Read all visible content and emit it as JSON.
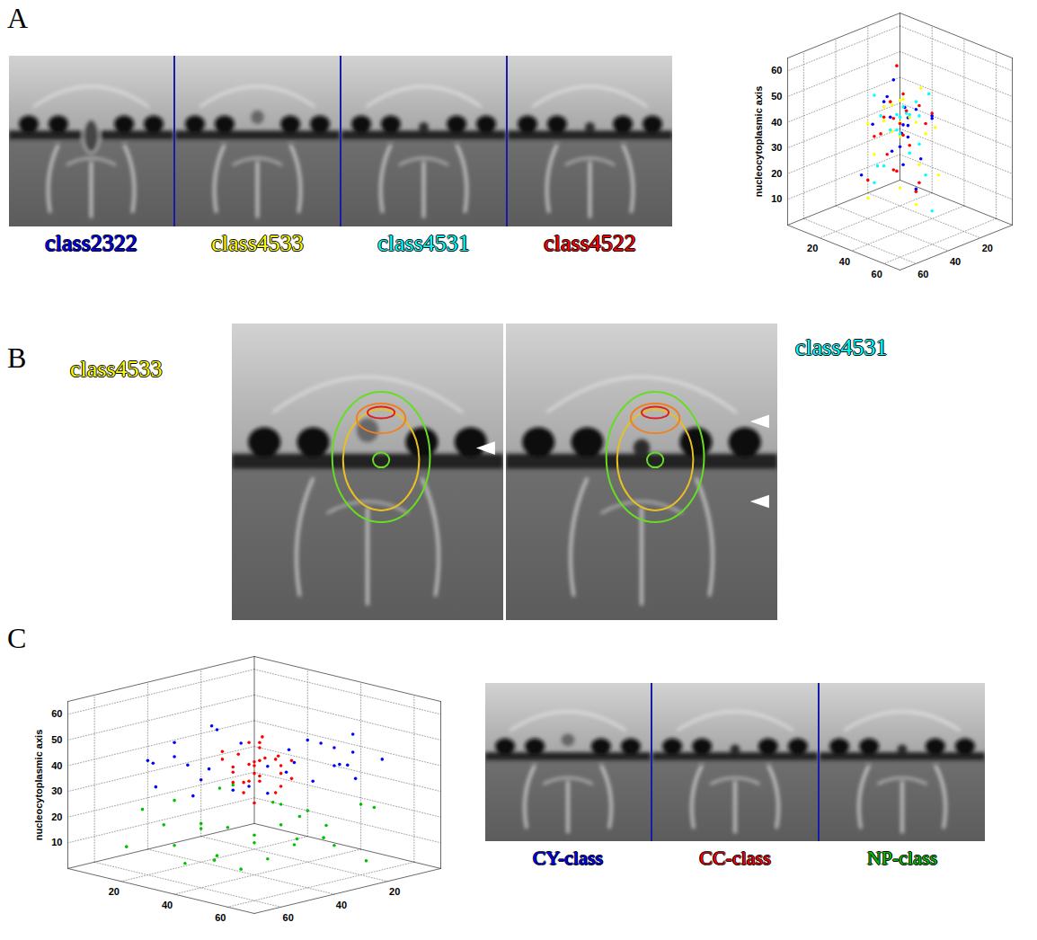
{
  "chart_data": [
    {
      "type": "scatter3d",
      "letter": "A",
      "zlabel": "nucleocytoplasmic axis",
      "xlim": [
        0,
        70
      ],
      "ylim": [
        0,
        70
      ],
      "zlim": [
        0,
        65
      ],
      "xticks": [
        20,
        40,
        60
      ],
      "yticks": [
        20,
        40,
        60
      ],
      "zticks": [
        10,
        20,
        30,
        40,
        50,
        60
      ],
      "grid": true,
      "series": [
        {
          "name": "class2322",
          "color": "#0000ff",
          "points": [
            [
              30,
              40,
              45
            ],
            [
              38,
              32,
              42
            ],
            [
              42,
              45,
              50
            ],
            [
              25,
              30,
              38
            ],
            [
              35,
              36,
              36
            ],
            [
              45,
              28,
              40
            ],
            [
              28,
              48,
              44
            ],
            [
              40,
              40,
              33
            ],
            [
              33,
              25,
              47
            ],
            [
              48,
              38,
              52
            ],
            [
              22,
              42,
              40
            ],
            [
              37,
              50,
              30
            ],
            [
              31,
              33,
              22
            ],
            [
              44,
              20,
              18
            ],
            [
              26,
              36,
              12
            ],
            [
              39,
              44,
              42
            ],
            [
              34,
              30,
              55
            ],
            [
              50,
              45,
              35
            ],
            [
              20,
              25,
              28
            ],
            [
              36,
              38,
              40
            ]
          ]
        },
        {
          "name": "class4533",
          "color": "#ffff00",
          "points": [
            [
              32,
              38,
              42
            ],
            [
              40,
              30,
              46
            ],
            [
              28,
              44,
              36
            ],
            [
              45,
              40,
              40
            ],
            [
              35,
              25,
              38
            ],
            [
              22,
              35,
              50
            ],
            [
              38,
              48,
              44
            ],
            [
              30,
              30,
              32
            ],
            [
              48,
              32,
              30
            ],
            [
              42,
              42,
              52
            ],
            [
              26,
              28,
              45
            ],
            [
              34,
              46,
              26
            ],
            [
              18,
              40,
              35
            ],
            [
              50,
              30,
              42
            ],
            [
              36,
              36,
              15
            ],
            [
              24,
              48,
              20
            ],
            [
              44,
              24,
              10
            ],
            [
              30,
              40,
              8
            ],
            [
              40,
              35,
              48
            ],
            [
              33,
              33,
              39
            ]
          ]
        },
        {
          "name": "class4531",
          "color": "#00ffff",
          "points": [
            [
              34,
              40,
              44
            ],
            [
              40,
              34,
              38
            ],
            [
              26,
              36,
              46
            ],
            [
              46,
              44,
              42
            ],
            [
              30,
              28,
              40
            ],
            [
              38,
              50,
              36
            ],
            [
              42,
              26,
              50
            ],
            [
              20,
              32,
              38
            ],
            [
              36,
              42,
              30
            ],
            [
              48,
              36,
              46
            ],
            [
              28,
              46,
              52
            ],
            [
              32,
              32,
              34
            ],
            [
              44,
              30,
              24
            ],
            [
              24,
              40,
              18
            ],
            [
              38,
              22,
              14
            ],
            [
              30,
              50,
              8
            ],
            [
              50,
              40,
              28
            ],
            [
              35,
              35,
              42
            ],
            [
              42,
              46,
              48
            ],
            [
              22,
              24,
              40
            ]
          ]
        },
        {
          "name": "class4522",
          "color": "#ff0000",
          "points": [
            [
              36,
              36,
              40
            ],
            [
              42,
              38,
              44
            ],
            [
              28,
              32,
              42
            ],
            [
              46,
              30,
              36
            ],
            [
              32,
              44,
              48
            ],
            [
              38,
              26,
              34
            ],
            [
              24,
              40,
              38
            ],
            [
              44,
              46,
              40
            ],
            [
              30,
              36,
              30
            ],
            [
              40,
              42,
              54
            ],
            [
              34,
              28,
              46
            ],
            [
              48,
              40,
              32
            ],
            [
              26,
              46,
              44
            ],
            [
              38,
              34,
              22
            ],
            [
              42,
              22,
              16
            ],
            [
              28,
              38,
              12
            ],
            [
              46,
              44,
              26
            ],
            [
              32,
              30,
              60
            ],
            [
              36,
              48,
              20
            ],
            [
              40,
              30,
              42
            ]
          ]
        }
      ]
    },
    {
      "type": "scatter3d",
      "letter": "C",
      "zlabel": "nucleocytoplasmic axis",
      "xlim": [
        0,
        70
      ],
      "ylim": [
        0,
        70
      ],
      "zlim": [
        0,
        65
      ],
      "xticks": [
        20,
        40,
        60
      ],
      "yticks": [
        20,
        40,
        60
      ],
      "zticks": [
        10,
        20,
        30,
        40,
        50,
        60
      ],
      "grid": true,
      "series": [
        {
          "name": "CY-class",
          "color": "#0000ff",
          "points": [
            [
              10,
              40,
              42
            ],
            [
              15,
              35,
              45
            ],
            [
              20,
              50,
              40
            ],
            [
              55,
              30,
              44
            ],
            [
              60,
              40,
              42
            ],
            [
              50,
              55,
              38
            ],
            [
              12,
              25,
              38
            ],
            [
              18,
              55,
              46
            ],
            [
              58,
              50,
              40
            ],
            [
              25,
              60,
              44
            ],
            [
              62,
              25,
              36
            ],
            [
              8,
              45,
              48
            ],
            [
              45,
              60,
              50
            ],
            [
              20,
              15,
              40
            ],
            [
              55,
              15,
              42
            ],
            [
              30,
              62,
              46
            ],
            [
              48,
              10,
              38
            ],
            [
              14,
              52,
              34
            ],
            [
              60,
              58,
              44
            ],
            [
              5,
              30,
              40
            ],
            [
              40,
              62,
              42
            ],
            [
              62,
              45,
              48
            ],
            [
              22,
              8,
              44
            ],
            [
              52,
              22,
              50
            ],
            [
              35,
              5,
              36
            ],
            [
              18,
              30,
              32
            ],
            [
              58,
              35,
              34
            ],
            [
              10,
              58,
              42
            ],
            [
              45,
              50,
              46
            ],
            [
              28,
              12,
              48
            ]
          ]
        },
        {
          "name": "CC-class",
          "color": "#ff0000",
          "points": [
            [
              35,
              35,
              40
            ],
            [
              30,
              38,
              42
            ],
            [
              40,
              32,
              38
            ],
            [
              33,
              42,
              45
            ],
            [
              38,
              40,
              36
            ],
            [
              28,
              30,
              44
            ],
            [
              42,
              44,
              40
            ],
            [
              36,
              28,
              32
            ],
            [
              32,
              34,
              48
            ],
            [
              44,
              36,
              42
            ],
            [
              30,
              44,
              36
            ],
            [
              38,
              36,
              50
            ],
            [
              34,
              30,
              28
            ],
            [
              40,
              40,
              44
            ],
            [
              26,
              36,
              38
            ],
            [
              36,
              46,
              40
            ],
            [
              42,
              30,
              46
            ],
            [
              32,
              40,
              30
            ],
            [
              38,
              34,
              34
            ],
            [
              30,
              32,
              40
            ],
            [
              44,
              42,
              38
            ],
            [
              35,
              38,
              52
            ],
            [
              28,
              42,
              42
            ],
            [
              40,
              28,
              42
            ],
            [
              36,
              36,
              26
            ],
            [
              33,
              33,
              36
            ],
            [
              39,
              43,
              46
            ],
            [
              31,
              29,
              38
            ],
            [
              37,
              31,
              44
            ],
            [
              34,
              44,
              34
            ]
          ]
        },
        {
          "name": "NP-class",
          "color": "#00c000",
          "points": [
            [
              10,
              20,
              15
            ],
            [
              20,
              40,
              20
            ],
            [
              30,
              10,
              10
            ],
            [
              40,
              50,
              22
            ],
            [
              50,
              30,
              18
            ],
            [
              60,
              45,
              12
            ],
            [
              15,
              55,
              25
            ],
            [
              25,
              25,
              8
            ],
            [
              35,
              40,
              5
            ],
            [
              45,
              15,
              24
            ],
            [
              55,
              55,
              20
            ],
            [
              8,
              35,
              10
            ],
            [
              62,
              20,
              26
            ],
            [
              30,
              60,
              14
            ],
            [
              40,
              30,
              16
            ],
            [
              18,
              10,
              22
            ],
            [
              50,
              45,
              6
            ],
            [
              22,
              48,
              12
            ],
            [
              58,
              10,
              8
            ],
            [
              35,
              22,
              28
            ],
            [
              45,
              60,
              18
            ],
            [
              12,
              28,
              4
            ],
            [
              28,
              35,
              24
            ],
            [
              52,
              38,
              10
            ],
            [
              38,
              55,
              26
            ],
            [
              5,
              50,
              20
            ],
            [
              60,
              30,
              14
            ],
            [
              42,
              8,
              12
            ],
            [
              20,
              62,
              6
            ],
            [
              48,
              22,
              2
            ]
          ]
        }
      ]
    }
  ],
  "panel_b": {
    "letter": "B",
    "images": [
      {
        "label": "class4533",
        "color": "#ffff00"
      },
      {
        "label": "class4531",
        "color": "#00ffff"
      }
    ]
  }
}
